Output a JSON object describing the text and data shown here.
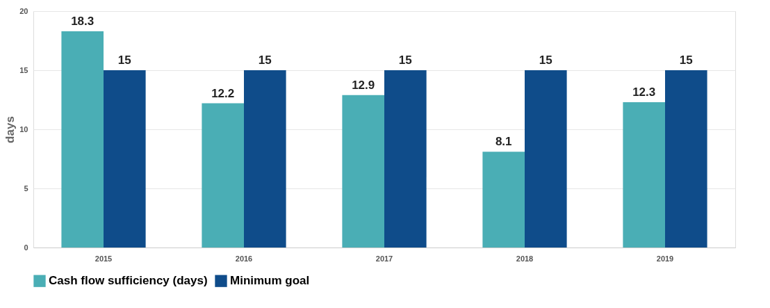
{
  "chart_data": {
    "type": "bar",
    "ylabel": "days",
    "categories": [
      "2015",
      "2016",
      "2017",
      "2018",
      "2019"
    ],
    "series": [
      {
        "name": "Cash flow sufficiency (days)",
        "color": "#4aaeb5",
        "values": [
          18.3,
          12.2,
          12.9,
          8.1,
          12.3
        ]
      },
      {
        "name": "Minimum goal",
        "color": "#0f4c8a",
        "values": [
          15,
          15,
          15,
          15,
          15
        ]
      }
    ],
    "ylim": [
      0,
      20
    ],
    "yticks": [
      0,
      5,
      10,
      15,
      20
    ],
    "grid": "y",
    "legend": "bottom",
    "data_labels": true
  }
}
